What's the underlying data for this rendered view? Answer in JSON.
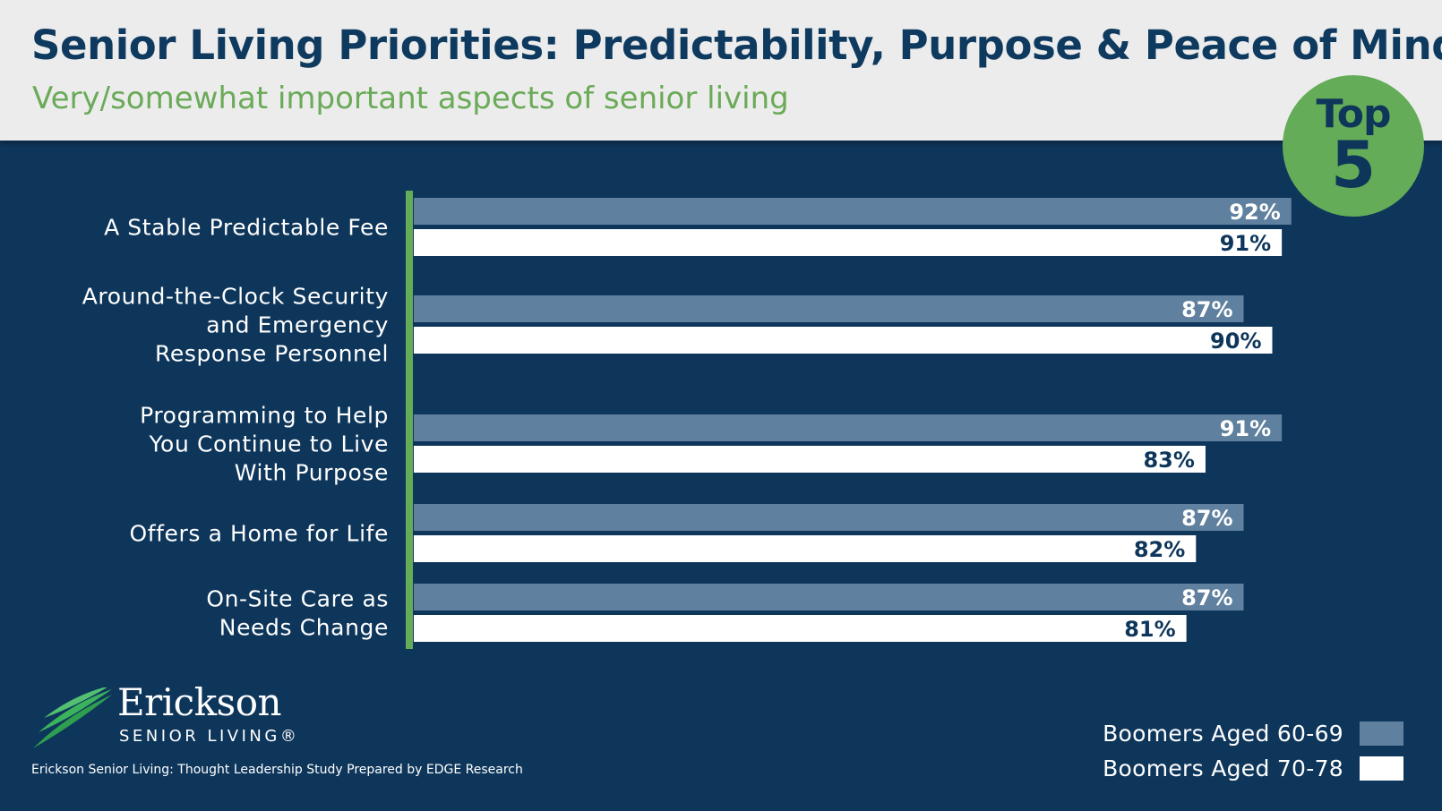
{
  "header": {
    "title": "Senior Living Priorities: Predictability, Purpose & Peace of Mind",
    "subtitle": "Very/somewhat important aspects of senior living"
  },
  "badge": {
    "line1": "Top",
    "line2": "5"
  },
  "colors": {
    "background": "#0e365b",
    "series1": "#5f809e",
    "series2": "#ffffff",
    "accent": "#64ac57",
    "label_dark": "#0e365b"
  },
  "chart_data": {
    "type": "bar",
    "orientation": "horizontal",
    "categories": [
      [
        "A Stable Predictable Fee"
      ],
      [
        "Around-the-Clock Security",
        "and Emergency",
        "Response Personnel"
      ],
      [
        "Programming to Help",
        "You Continue to Live",
        "With Purpose"
      ],
      [
        "Offers a Home for Life"
      ],
      [
        "On-Site Care as",
        "Needs Change"
      ]
    ],
    "series": [
      {
        "name": "Boomers Aged 60-69",
        "values": [
          92,
          87,
          91,
          87,
          87
        ],
        "labels": [
          "92%",
          "87%",
          "91%",
          "87%",
          "87%"
        ]
      },
      {
        "name": "Boomers Aged 70-78",
        "values": [
          91,
          90,
          83,
          82,
          81
        ],
        "labels": [
          "91%",
          "90%",
          "83%",
          "82%",
          "81%"
        ]
      }
    ],
    "xlim": [
      0,
      100
    ],
    "grid": false,
    "legend": "bottom-right"
  },
  "branding": {
    "name": "Erickson",
    "sub": "SENIOR LIVING®"
  },
  "source": "Erickson Senior Living: Thought Leadership Study Prepared by EDGE Research"
}
